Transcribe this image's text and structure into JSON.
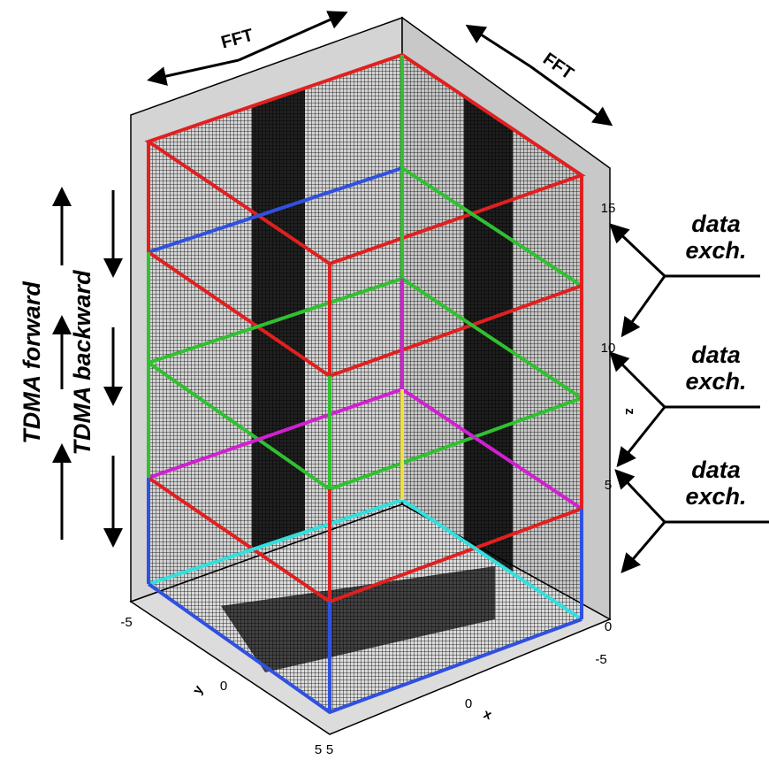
{
  "labels": {
    "fft_left": "FFT",
    "fft_right": "FFT",
    "tdma_forward": "TDMA forward",
    "tdma_backward": "TDMA backward",
    "data_exchange": [
      [
        "data",
        "exch."
      ],
      [
        "data",
        "exch."
      ],
      [
        "data",
        "exch."
      ]
    ]
  },
  "axes": {
    "z": {
      "label": "z",
      "ticks": [
        "15",
        "10",
        "5",
        "0"
      ]
    },
    "y": {
      "label": "y",
      "ticks": [
        "-5",
        "0",
        "5"
      ]
    },
    "x": {
      "label": "x",
      "ticks": [
        "5",
        "0",
        "-5"
      ]
    }
  }
}
